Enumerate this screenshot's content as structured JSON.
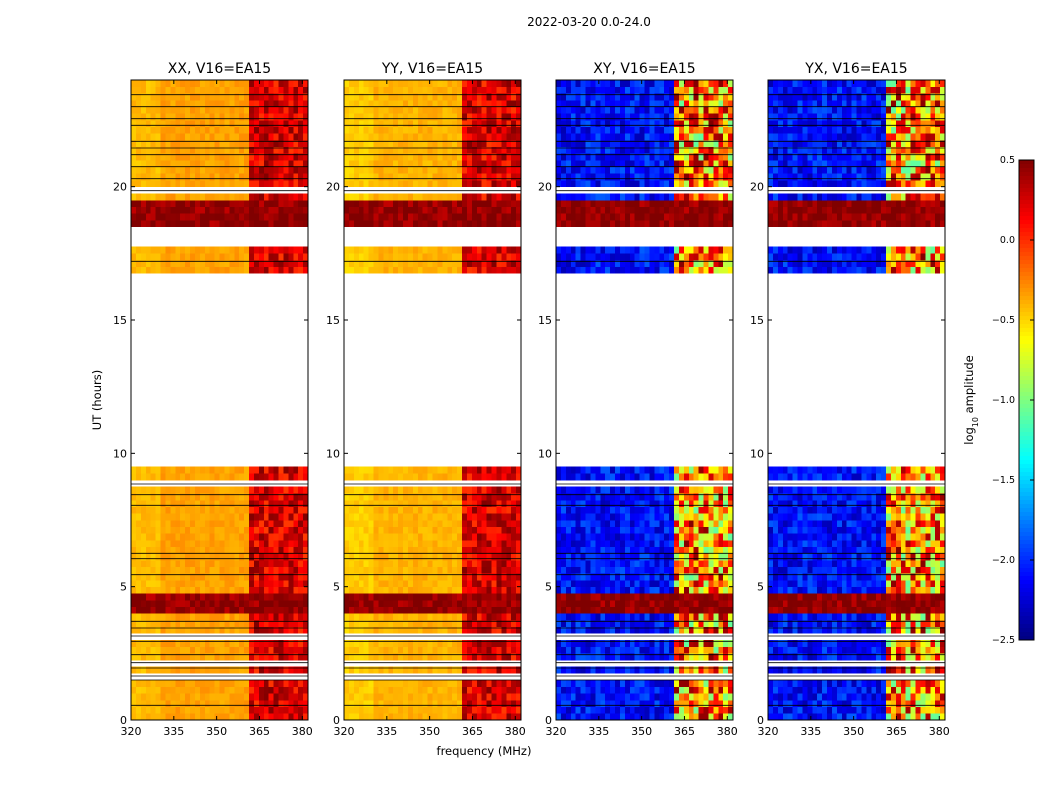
{
  "suptitle": "2022-03-20 0.0-24.0",
  "xlabel": "frequency (MHz)",
  "ylabel": "UT (hours)",
  "colorbar": {
    "label": "log10 amplitude",
    "label_main": "log",
    "label_sub": "10",
    "label_rest": " amplitude",
    "range": [
      -2.5,
      0.5
    ],
    "ticks": [
      "0.5",
      "0.0",
      "−0.5",
      "−1.0",
      "−1.5",
      "−2.0",
      "−2.5"
    ],
    "tick_values": [
      0.5,
      0.0,
      -0.5,
      -1.0,
      -1.5,
      -2.0,
      -2.5
    ],
    "colormap": "jet"
  },
  "chart_data": {
    "type": "heatmap",
    "x": {
      "min": 320,
      "max": 382,
      "ticks": [
        320,
        335,
        350,
        365,
        380
      ],
      "tick_labels": [
        "320",
        "335",
        "350",
        "365",
        "380"
      ]
    },
    "y": {
      "min": 0,
      "max": 24,
      "ticks": [
        0,
        5,
        10,
        15,
        20
      ],
      "tick_labels": [
        "0",
        "5",
        "10",
        "15",
        "20"
      ]
    },
    "data_gap_hours": [
      [
        9.5,
        16.7
      ],
      [
        17.8,
        18.6
      ]
    ],
    "blank_rows_hours": [
      0.55,
      1.5,
      1.65,
      1.95,
      2.15,
      2.45,
      2.95,
      3.15,
      3.45,
      3.7,
      5.45,
      6.05,
      6.25,
      8.05,
      8.45,
      8.85,
      17.2,
      19.85,
      20.3,
      20.75,
      21.2,
      21.45,
      21.7,
      22.3,
      22.55,
      23.0,
      23.45
    ],
    "strong_rows_hours": [
      [
        4.0,
        4.8
      ],
      [
        18.6,
        19.45
      ]
    ],
    "panels": [
      {
        "title": "XX, V16=EA15",
        "pol": "parallel",
        "mean_log_amp": -0.35
      },
      {
        "title": "YY, V16=EA15",
        "pol": "parallel",
        "mean_log_amp": -0.4
      },
      {
        "title": "XY, V16=EA15",
        "pol": "cross",
        "mean_log_amp": -2.1
      },
      {
        "title": "YX, V16=EA15",
        "pol": "cross",
        "mean_log_amp": -2.1
      }
    ]
  }
}
